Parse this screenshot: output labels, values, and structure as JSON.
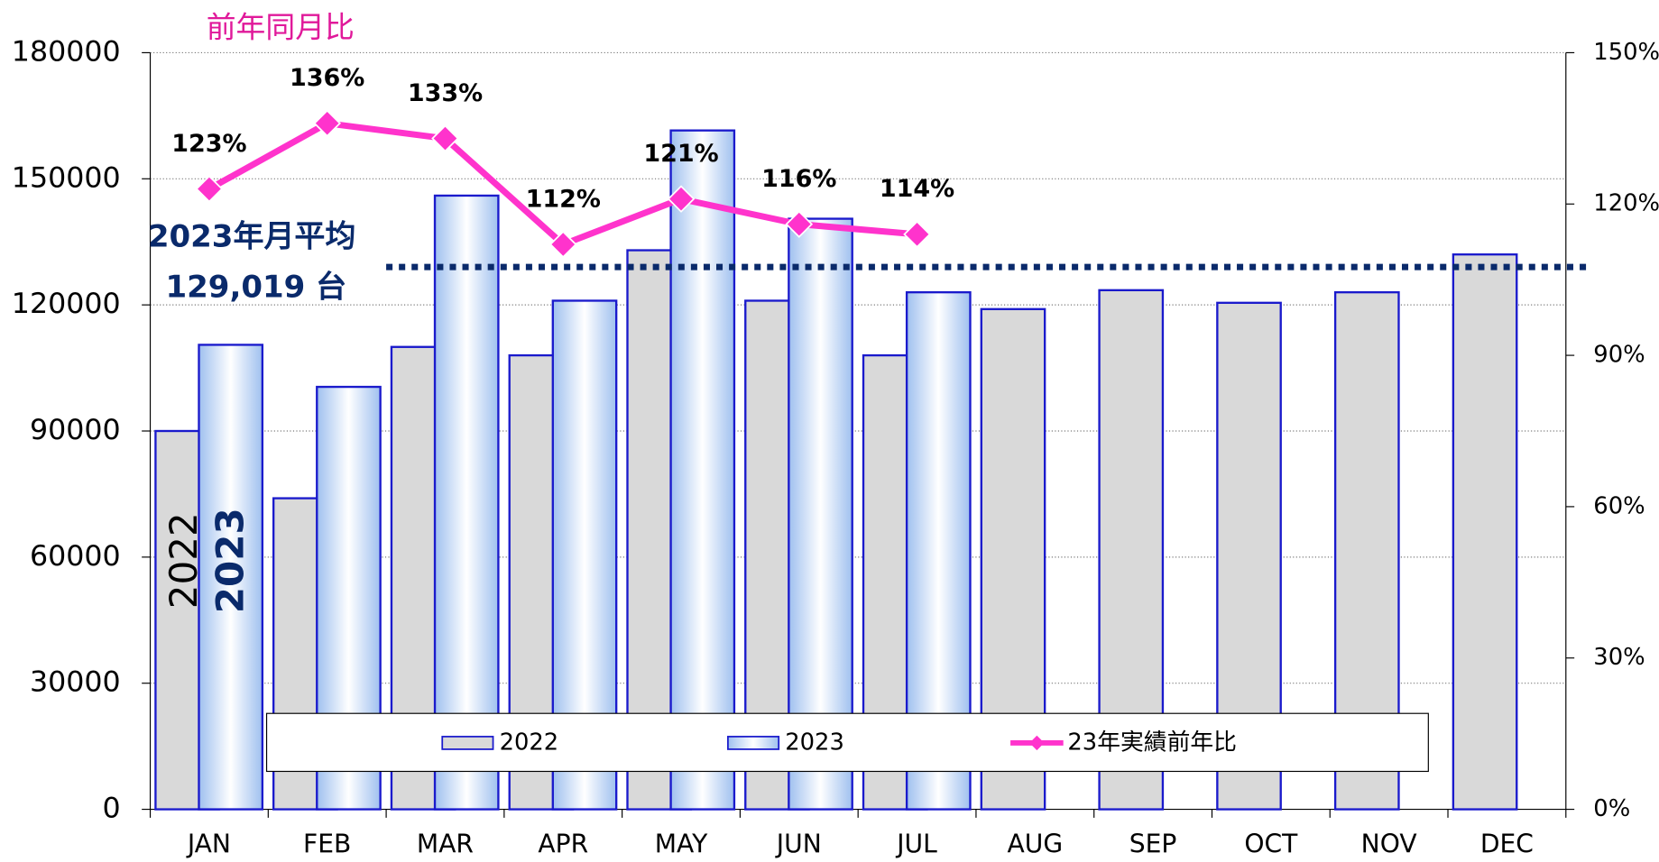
{
  "chart_data": {
    "type": "bar",
    "y2_title": "前年同月比",
    "categories": [
      "JAN",
      "FEB",
      "MAR",
      "APR",
      "MAY",
      "JUN",
      "JUL",
      "AUG",
      "SEP",
      "OCT",
      "NOV",
      "DEC"
    ],
    "series": [
      {
        "name": "2022",
        "color": "#d9d9d9",
        "values": [
          90000,
          74000,
          110000,
          108000,
          133000,
          121000,
          108000,
          119000,
          123500,
          120500,
          123000,
          132000
        ]
      },
      {
        "name": "2023",
        "color": "#cfe0f7",
        "values": [
          110500,
          100500,
          146000,
          121000,
          161500,
          140500,
          123000,
          null,
          null,
          null,
          null,
          null
        ]
      },
      {
        "name": "23年実績前年比",
        "type": "line",
        "color": "#ff33cc",
        "axis": "y2",
        "values": [
          123,
          136,
          133,
          112,
          121,
          116,
          114,
          null,
          null,
          null,
          null,
          null
        ],
        "value_labels": [
          "123%",
          "136%",
          "133%",
          "112%",
          "121%",
          "116%",
          "114%",
          null,
          null,
          null,
          null,
          null
        ]
      }
    ],
    "ylim": [
      0,
      180000
    ],
    "yticks": [
      0,
      30000,
      60000,
      90000,
      120000,
      150000,
      180000
    ],
    "y2lim": [
      0,
      150
    ],
    "y2ticks": [
      {
        "value": 0,
        "label": "0%"
      },
      {
        "value": 30,
        "label": "30%"
      },
      {
        "value": 60,
        "label": "60%"
      },
      {
        "value": 90,
        "label": "90%"
      },
      {
        "value": 120,
        "label": "120%"
      },
      {
        "value": 150,
        "label": "150%"
      }
    ],
    "average": {
      "label": "2023年月平均",
      "value": 129019,
      "value_label": "129,019 台",
      "color": "#0a2a6b"
    },
    "grid": true,
    "legend": "bottom"
  }
}
